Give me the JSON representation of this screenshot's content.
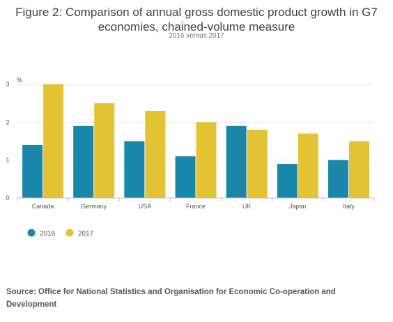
{
  "header": {
    "title": "Figure 2: Comparison of annual gross domestic product growth in G7 economies, chained-volume measure",
    "subtitle": "2016 versus 2017"
  },
  "chart_data": {
    "type": "bar",
    "categories": [
      "Canada",
      "Germany",
      "USA",
      "France",
      "UK",
      "Japan",
      "Italy"
    ],
    "series": [
      {
        "name": "2016",
        "color": "#1a87aa",
        "values": [
          1.4,
          1.9,
          1.5,
          1.1,
          1.9,
          0.9,
          1.0
        ]
      },
      {
        "name": "2017",
        "color": "#e3c233",
        "values": [
          3.0,
          2.5,
          2.3,
          2.0,
          1.8,
          1.7,
          1.5
        ]
      }
    ],
    "ylabel": "%",
    "ylim": [
      0,
      3
    ],
    "yticks": [
      0,
      1,
      2,
      3
    ],
    "grid": true,
    "legend": "bottom-left"
  },
  "footer": {
    "source": "Source: Office for National Statistics and Organisation for Economic Co-operation and Development"
  }
}
